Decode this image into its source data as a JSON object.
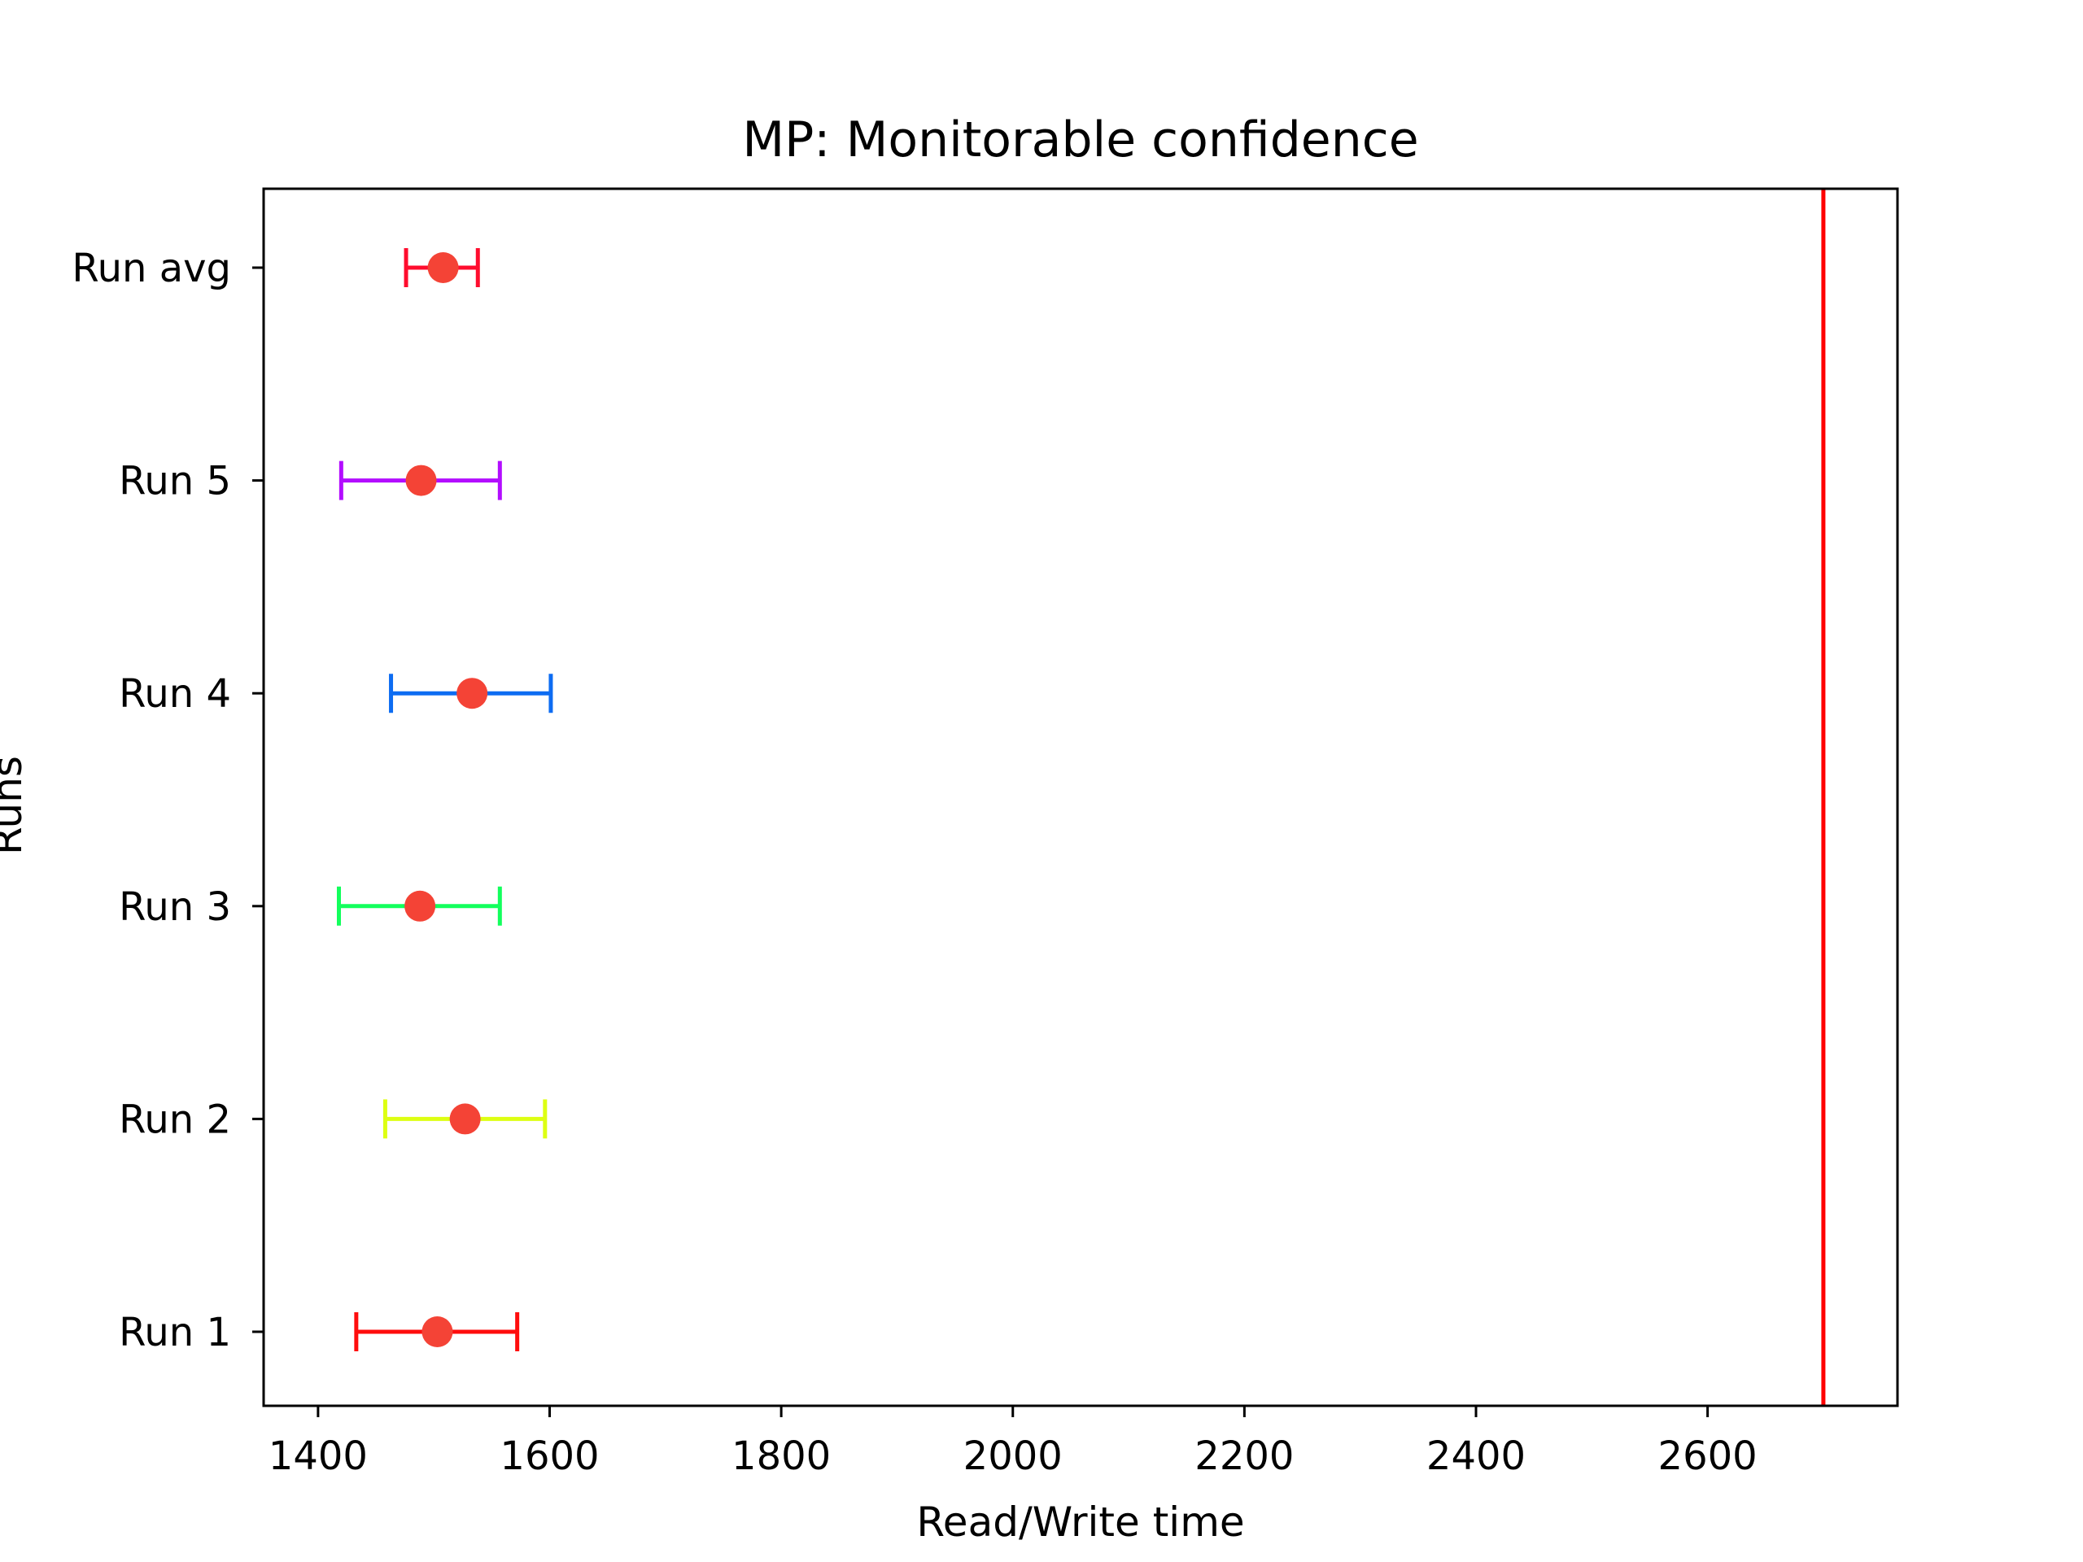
{
  "chart_data": {
    "type": "errorbar",
    "title": "MP: Monitorable confidence",
    "xlabel": "Read/Write time",
    "ylabel": "Runs",
    "xlim": [
      1353,
      2764
    ],
    "x_ticks": [
      1400,
      1600,
      1800,
      2000,
      2200,
      2400,
      2600
    ],
    "categories": [
      "Run 1",
      "Run 2",
      "Run 3",
      "Run 4",
      "Run 5",
      "Run avg"
    ],
    "series": [
      {
        "name": "Run 1",
        "mean": 1503,
        "lower": 1433,
        "upper": 1572,
        "color": "#ff0d0d"
      },
      {
        "name": "Run 2",
        "mean": 1527,
        "lower": 1458,
        "upper": 1596,
        "color": "#ddff12"
      },
      {
        "name": "Run 3",
        "mean": 1488,
        "lower": 1418,
        "upper": 1557,
        "color": "#12ff5c"
      },
      {
        "name": "Run 4",
        "mean": 1533,
        "lower": 1463,
        "upper": 1601,
        "color": "#0d6cf2"
      },
      {
        "name": "Run 5",
        "mean": 1489,
        "lower": 1420,
        "upper": 1557,
        "color": "#b30dff"
      },
      {
        "name": "Run avg",
        "mean": 1508,
        "lower": 1476,
        "upper": 1538,
        "color": "#ff0d2e"
      }
    ],
    "marker_color": "#f44336",
    "reference_line": {
      "x": 2700,
      "color": "#ff0000"
    },
    "grid": false
  }
}
